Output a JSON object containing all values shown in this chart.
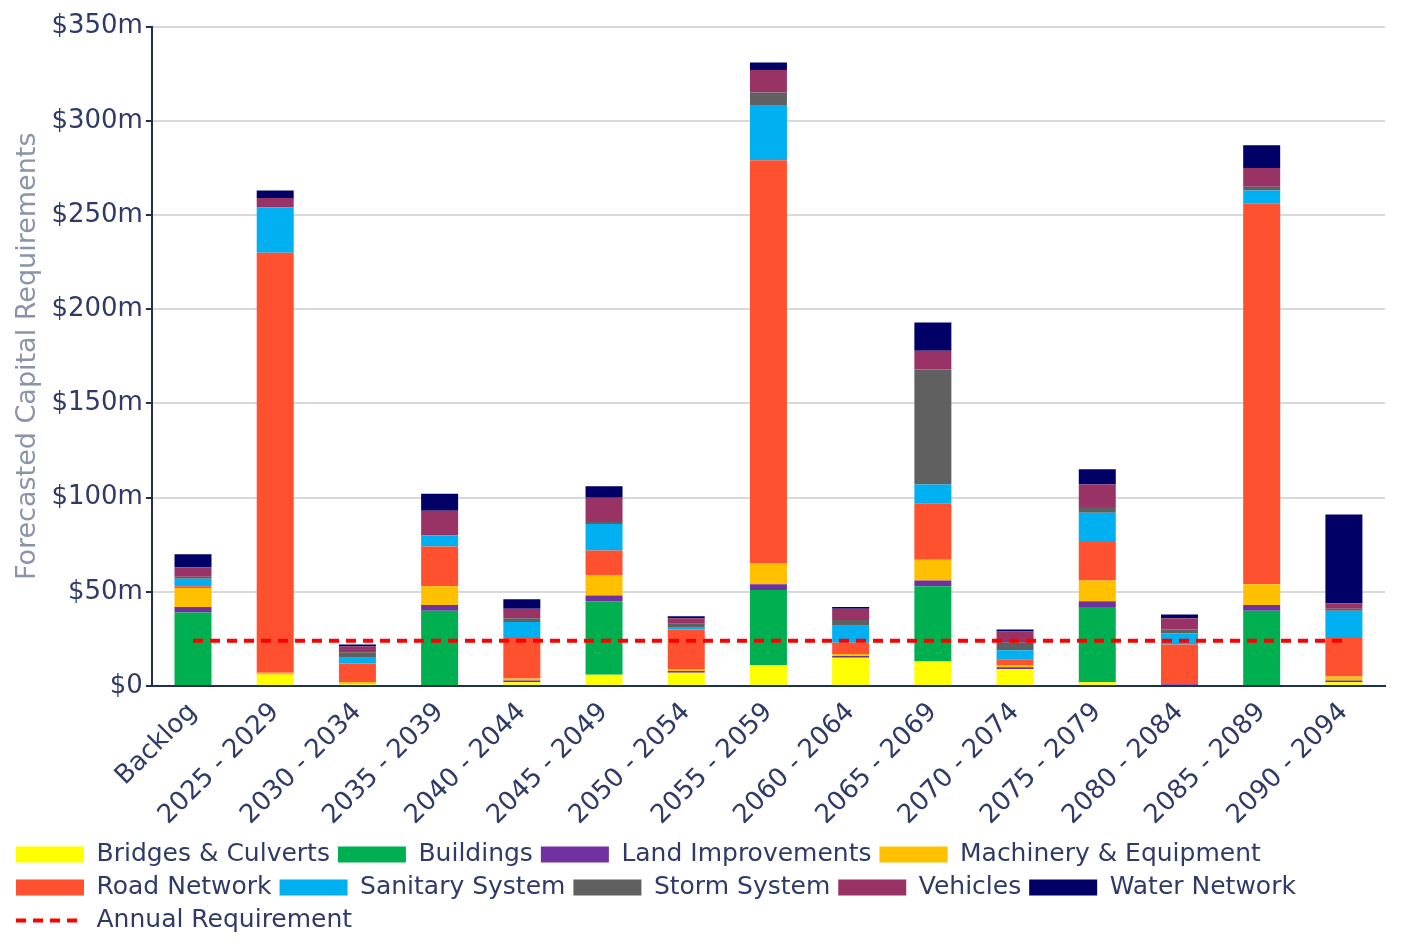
{
  "chart_data": {
    "type": "bar",
    "stacked": true,
    "ylabel": "Forecasted Capital Requirements",
    "categories": [
      "Backlog",
      "2025 - 2029",
      "2030 - 2034",
      "2035 - 2039",
      "2040 - 2044",
      "2045 - 2049",
      "2050 - 2054",
      "2055 - 2059",
      "2060 - 2064",
      "2065 - 2069",
      "2070 - 2074",
      "2075 - 2079",
      "2080 - 2084",
      "2085 - 2089",
      "2090 - 2094"
    ],
    "series": [
      {
        "name": "Bridges & Culverts",
        "color": "#ffff00",
        "values": [
          0,
          6,
          1,
          0,
          2,
          6,
          7,
          11,
          15,
          13,
          9,
          2,
          0,
          0,
          2
        ]
      },
      {
        "name": "Buildings",
        "color": "#00b050",
        "values": [
          39,
          0,
          0,
          40,
          0,
          39,
          0,
          40,
          0,
          40,
          0,
          40,
          0,
          40,
          0
        ]
      },
      {
        "name": "Land Improvements",
        "color": "#7030a0",
        "values": [
          3,
          0,
          0,
          3,
          1,
          3,
          1,
          3,
          1,
          3,
          1,
          3,
          1,
          3,
          1
        ]
      },
      {
        "name": "Machinery & Equipment",
        "color": "#ffc000",
        "values": [
          10,
          1,
          1,
          10,
          1,
          11,
          1,
          11,
          1,
          11,
          1,
          11,
          0,
          11,
          2
        ]
      },
      {
        "name": "Road Network",
        "color": "#ff5030",
        "values": [
          1,
          223,
          10,
          21,
          22,
          13,
          21,
          214,
          6,
          30,
          3,
          21,
          21,
          202,
          21
        ]
      },
      {
        "name": "Sanitary System",
        "color": "#00b0f0",
        "values": [
          4,
          24,
          3,
          6,
          8,
          14,
          1,
          29,
          9,
          10,
          5,
          15,
          6,
          7,
          14
        ]
      },
      {
        "name": "Storm System",
        "color": "#606060",
        "values": [
          1,
          0,
          3,
          0,
          2,
          1,
          2,
          7,
          3,
          61,
          4,
          3,
          2,
          2,
          1
        ]
      },
      {
        "name": "Vehicles",
        "color": "#993366",
        "values": [
          5,
          5,
          3,
          13,
          5,
          13,
          3,
          12,
          6,
          10,
          6,
          12,
          6,
          10,
          3
        ]
      },
      {
        "name": "Water Network",
        "color": "#000066",
        "values": [
          7,
          4,
          1,
          9,
          5,
          6,
          1,
          4,
          1,
          15,
          1,
          8,
          2,
          12,
          47
        ]
      },
      {
        "name": "Annual Requirement",
        "type": "line",
        "color": "#ff0000",
        "line_style": "dashed",
        "marker": "none",
        "values": [
          24,
          24,
          24,
          24,
          24,
          24,
          24,
          24,
          24,
          24,
          24,
          24,
          24,
          24,
          24
        ]
      }
    ],
    "ylim": [
      0,
      350
    ],
    "yticks": [
      {
        "value": 0,
        "label": "$0"
      },
      {
        "value": 50,
        "label": "$50m"
      },
      {
        "value": 100,
        "label": "$100m"
      },
      {
        "value": 150,
        "label": "$150m"
      },
      {
        "value": 200,
        "label": "$200m"
      },
      {
        "value": 250,
        "label": "$250m"
      },
      {
        "value": 300,
        "label": "$300m"
      },
      {
        "value": 350,
        "label": "$350m"
      }
    ],
    "grid": "y",
    "legend": "bottom"
  }
}
